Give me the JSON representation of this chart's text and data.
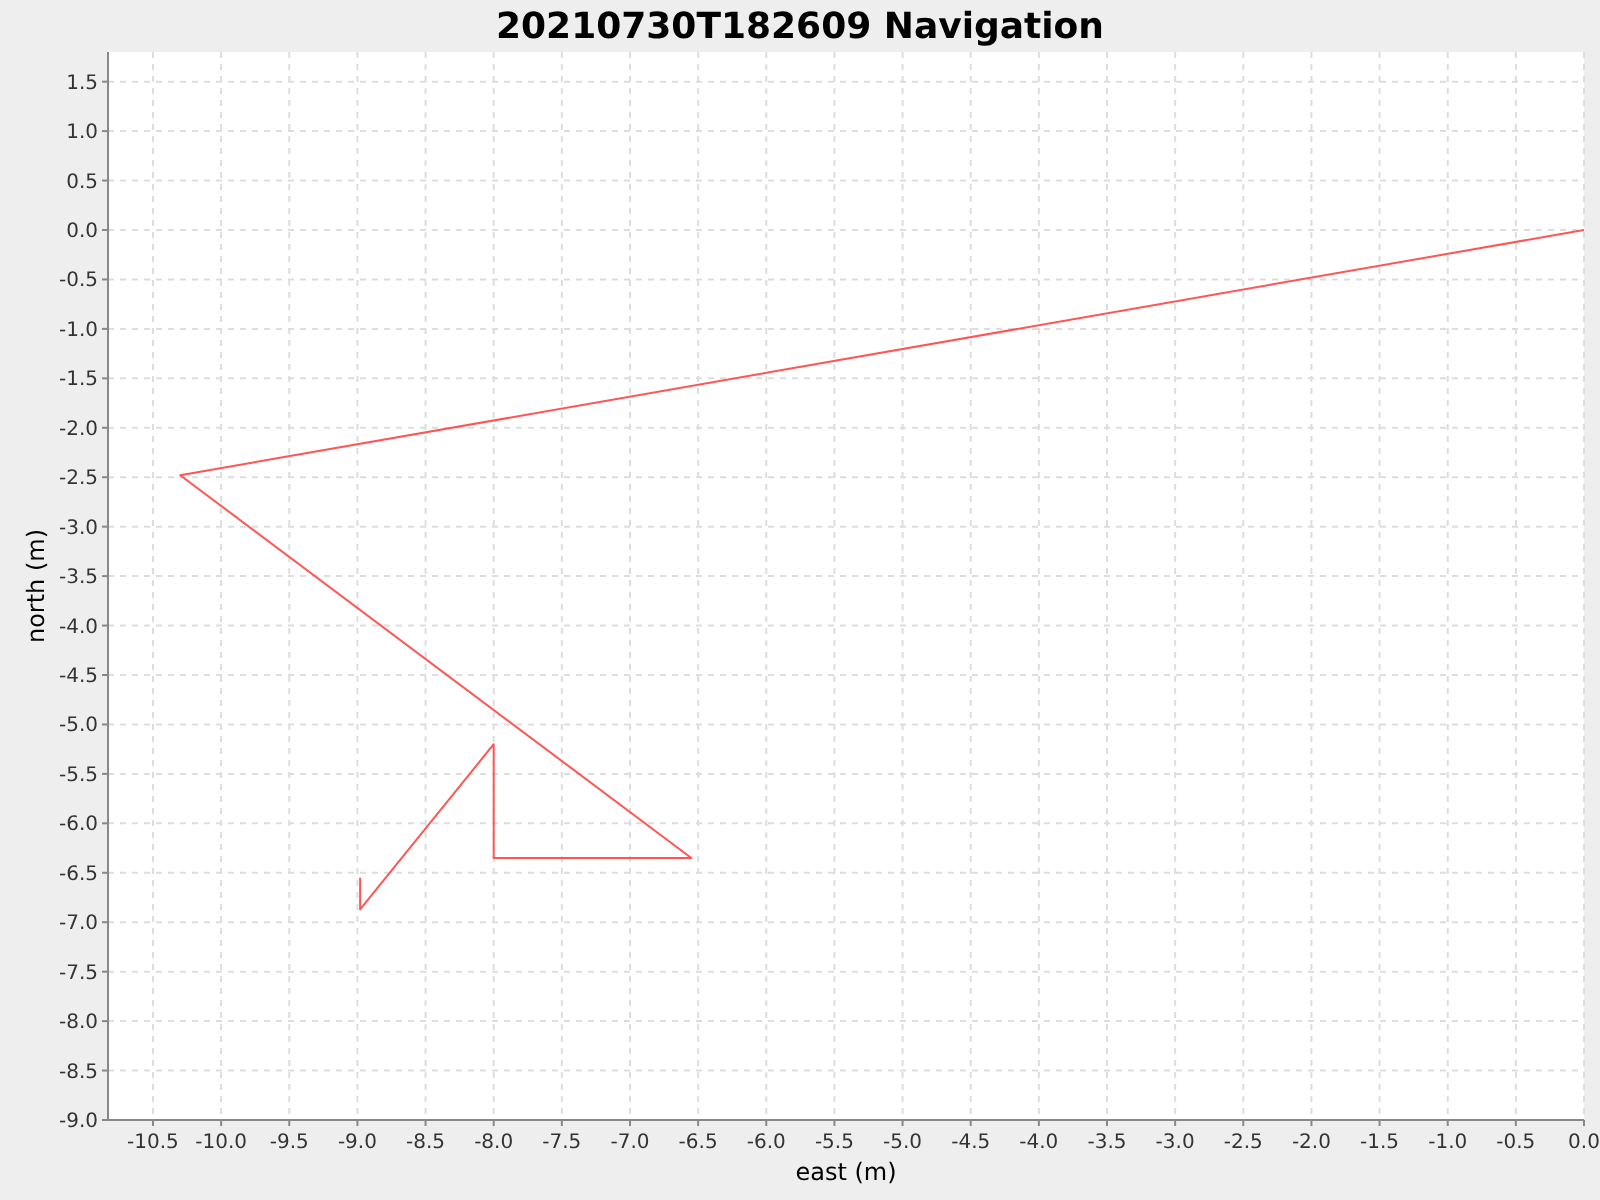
{
  "chart_data": {
    "type": "line",
    "title": "20210730T182609 Navigation",
    "xlabel": "east (m)",
    "ylabel": "north (m)",
    "x": [
      0,
      -10.3,
      -6.55,
      -8.0,
      -8.0,
      -8.98,
      -8.98
    ],
    "series": [
      {
        "color": "#ff5555",
        "values": [
          0,
          -2.48,
          -6.35,
          -6.35,
          -5.2,
          -6.87,
          -6.55
        ]
      }
    ],
    "xlim": [
      -10.83,
      0
    ],
    "ylim": [
      -9.0,
      1.8
    ],
    "xticks": [
      {
        "value": -10.5,
        "label": "-10.5"
      },
      {
        "value": -10,
        "label": "-10.0"
      },
      {
        "value": -9.5,
        "label": "-9.5"
      },
      {
        "value": -9,
        "label": "-9.0"
      },
      {
        "value": -8.5,
        "label": "-8.5"
      },
      {
        "value": -8,
        "label": "-8.0"
      },
      {
        "value": -7.5,
        "label": "-7.5"
      },
      {
        "value": -7,
        "label": "-7.0"
      },
      {
        "value": -6.5,
        "label": "-6.5"
      },
      {
        "value": -6,
        "label": "-6.0"
      },
      {
        "value": -5.5,
        "label": "-5.5"
      },
      {
        "value": -5,
        "label": "-5.0"
      },
      {
        "value": -4.5,
        "label": "-4.5"
      },
      {
        "value": -4,
        "label": "-4.0"
      },
      {
        "value": -3.5,
        "label": "-3.5"
      },
      {
        "value": -3,
        "label": "-3.0"
      },
      {
        "value": -2.5,
        "label": "-2.5"
      },
      {
        "value": -2,
        "label": "-2.0"
      },
      {
        "value": -1.5,
        "label": "-1.5"
      },
      {
        "value": -1,
        "label": "-1.0"
      },
      {
        "value": -0.5,
        "label": "-0.5"
      },
      {
        "value": 0,
        "label": "0.0"
      }
    ],
    "yticks": [
      {
        "value": -9,
        "label": "-9.0"
      },
      {
        "value": -8.5,
        "label": "-8.5"
      },
      {
        "value": -8,
        "label": "-8.0"
      },
      {
        "value": -7.5,
        "label": "-7.5"
      },
      {
        "value": -7,
        "label": "-7.0"
      },
      {
        "value": -6.5,
        "label": "-6.5"
      },
      {
        "value": -6,
        "label": "-6.0"
      },
      {
        "value": -5.5,
        "label": "-5.5"
      },
      {
        "value": -5,
        "label": "-5.0"
      },
      {
        "value": -4.5,
        "label": "-4.5"
      },
      {
        "value": -4,
        "label": "-4.0"
      },
      {
        "value": -3.5,
        "label": "-3.5"
      },
      {
        "value": -3,
        "label": "-3.0"
      },
      {
        "value": -2.5,
        "label": "-2.5"
      },
      {
        "value": -2,
        "label": "-2.0"
      },
      {
        "value": -1.5,
        "label": "-1.5"
      },
      {
        "value": -1,
        "label": "-1.0"
      },
      {
        "value": -0.5,
        "label": "-0.5"
      },
      {
        "value": 0,
        "label": "0.0"
      },
      {
        "value": 0.5,
        "label": "0.5"
      },
      {
        "value": 1,
        "label": "1.0"
      },
      {
        "value": 1.5,
        "label": "1.5"
      }
    ],
    "grid": true
  }
}
